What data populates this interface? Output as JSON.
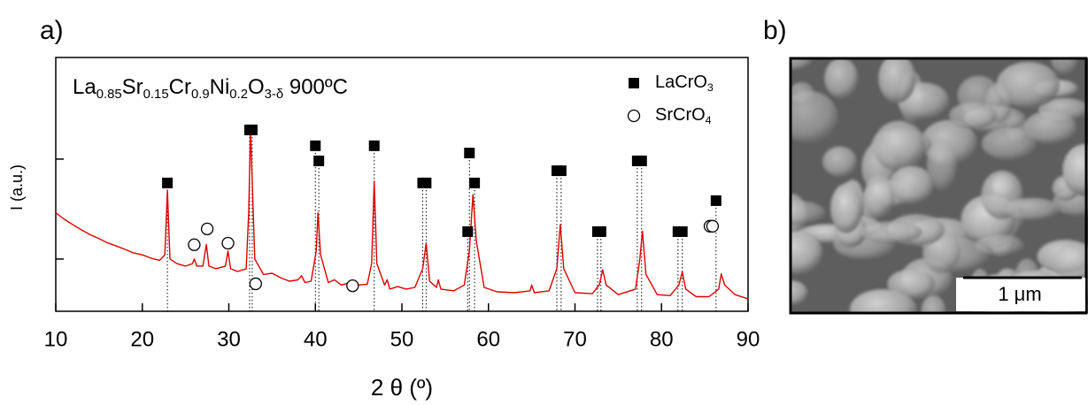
{
  "chart_data": {
    "type": "line",
    "panel_labels": [
      "a)",
      "b)"
    ],
    "title": "La0.85Sr0.15Cr0.9Ni0.2O3-δ 900ºC",
    "xlabel": "2 θ (º)",
    "ylabel": "I (a.u.)",
    "xlim": [
      10,
      90
    ],
    "xticks": [
      10,
      20,
      30,
      40,
      50,
      60,
      70,
      80,
      90
    ],
    "ylim": [
      0.3,
      104
    ],
    "yticks": [
      1,
      10
    ],
    "log_y": true,
    "color": "#e00000",
    "x": [
      10,
      11,
      12,
      13,
      14,
      15,
      16,
      17,
      18,
      19,
      20,
      21,
      22,
      22.6,
      22.9,
      23.2,
      24,
      25,
      25.8,
      26,
      26.3,
      27,
      27.4,
      27.7,
      28.5,
      29.6,
      29.9,
      30.2,
      31,
      32,
      32.3,
      32.5,
      32.7,
      33,
      34,
      35,
      36,
      37,
      38,
      38.4,
      38.8,
      39.5,
      40.1,
      40.3,
      40.6,
      41.5,
      42.2,
      43,
      44,
      45,
      46,
      46.5,
      46.8,
      47.1,
      48,
      48.3,
      48.6,
      49.5,
      50.5,
      51.5,
      52.4,
      52.8,
      53.2,
      54,
      54.2,
      54.5,
      56,
      57.2,
      57.8,
      58.2,
      58.6,
      59.5,
      61,
      63,
      64.8,
      65,
      65.3,
      67,
      67.9,
      68.3,
      68.7,
      70,
      72,
      72.8,
      73.2,
      73.6,
      75,
      77,
      77.5,
      77.8,
      78.2,
      79.5,
      81,
      82,
      82.4,
      82.8,
      84,
      85.5,
      86.6,
      86.9,
      87.3,
      88.5,
      90
    ],
    "values": [
      2.9,
      2.5,
      2.2,
      1.95,
      1.75,
      1.6,
      1.45,
      1.35,
      1.25,
      1.15,
      1.1,
      1.02,
      0.97,
      1.1,
      4.9,
      1.0,
      0.9,
      0.85,
      0.9,
      1.0,
      0.85,
      0.85,
      1.4,
      0.85,
      0.8,
      0.85,
      1.2,
      0.8,
      0.75,
      0.8,
      3,
      20,
      6,
      1.0,
      0.7,
      0.72,
      0.65,
      0.6,
      0.62,
      0.68,
      0.58,
      0.6,
      1.2,
      2.9,
      1.1,
      0.58,
      0.62,
      0.55,
      0.58,
      0.55,
      0.56,
      0.9,
      6,
      0.9,
      0.55,
      0.62,
      0.5,
      0.53,
      0.5,
      0.52,
      0.8,
      1.45,
      0.6,
      0.52,
      0.62,
      0.5,
      0.48,
      0.55,
      1.2,
      4.4,
      1.5,
      0.52,
      0.47,
      0.46,
      0.48,
      0.55,
      0.46,
      0.48,
      0.8,
      2.2,
      0.8,
      0.46,
      0.45,
      0.55,
      0.78,
      0.55,
      0.44,
      0.5,
      1.0,
      1.9,
      0.7,
      0.44,
      0.43,
      0.55,
      0.74,
      0.5,
      0.42,
      0.42,
      0.5,
      0.71,
      0.55,
      0.44,
      0.4
    ],
    "series": [
      {
        "name": "LaCrO3",
        "marker": "square",
        "color": "#000000",
        "x": [
          22.9,
          32.4,
          32.7,
          40.0,
          40.4,
          46.8,
          52.4,
          52.8,
          57.8,
          57.6,
          58.4,
          67.9,
          68.4,
          72.6,
          73.0,
          77.2,
          77.7,
          81.9,
          82.4,
          86.3
        ],
        "values": [
          5.77,
          19.6,
          19.6,
          13.6,
          9.6,
          13.6,
          5.77,
          5.77,
          11.5,
          1.88,
          5.77,
          7.65,
          7.65,
          1.88,
          1.88,
          9.6,
          9.6,
          1.88,
          1.88,
          3.84
        ]
      },
      {
        "name": "SrCrO4",
        "marker": "circle",
        "color": "#000000",
        "x": [
          26.0,
          27.5,
          29.9,
          33.1,
          44.3,
          85.6,
          85.9
        ],
        "values": [
          1.39,
          2.0,
          1.44,
          0.565,
          0.54,
          2.13,
          2.13
        ]
      }
    ],
    "scale_bar": "1 μm"
  }
}
